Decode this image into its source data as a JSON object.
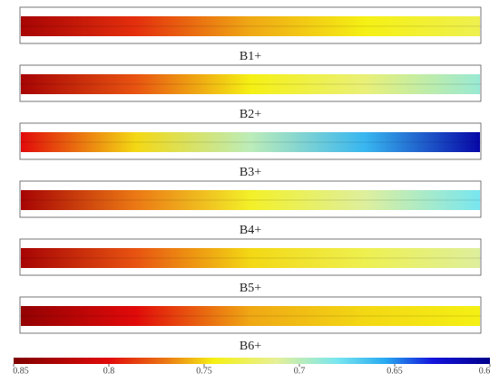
{
  "chart_data": {
    "type": "heatstrip",
    "panels": [
      {
        "label": "B1+",
        "values": [
          0.83,
          0.79,
          0.76,
          0.745,
          0.73
        ]
      },
      {
        "label": "B2+",
        "values": [
          0.83,
          0.78,
          0.745,
          0.72,
          0.69
        ]
      },
      {
        "label": "B3+",
        "values": [
          0.8,
          0.75,
          0.7,
          0.66,
          0.61
        ]
      },
      {
        "label": "B4+",
        "values": [
          0.83,
          0.77,
          0.74,
          0.71,
          0.68
        ]
      },
      {
        "label": "B5+",
        "values": [
          0.83,
          0.78,
          0.75,
          0.73,
          0.71
        ]
      },
      {
        "label": "B6+",
        "values": [
          0.84,
          0.8,
          0.76,
          0.75,
          0.745
        ]
      }
    ],
    "clim": [
      0.85,
      0.6
    ],
    "cticks": [
      0.85,
      0.8,
      0.75,
      0.7,
      0.65,
      0.6
    ]
  }
}
